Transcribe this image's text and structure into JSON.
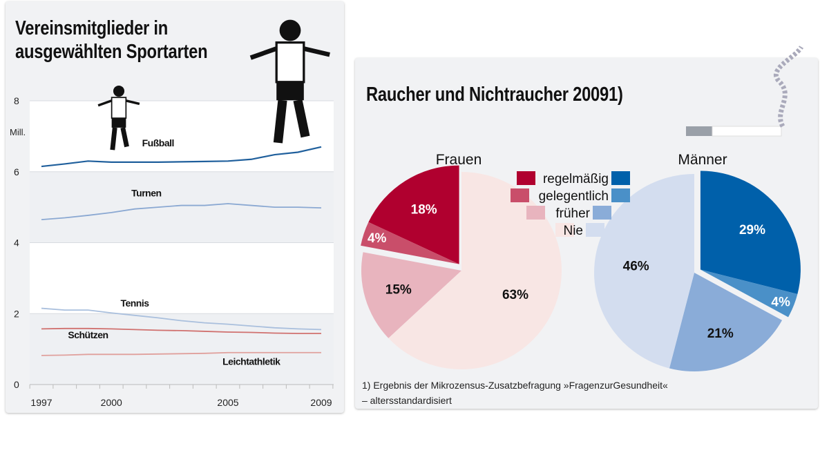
{
  "left": {
    "title_line1": "Vereinsmitglieder in",
    "title_line2": "ausgewählten Sportarten"
  },
  "right": {
    "title": "Raucher und Nichtraucher 20091)",
    "footnote_line1": "1) Ergebnis der Mikrozensus-Zusatzbefragung »FragenzurGesundheit«",
    "footnote_line2": "– altersstandardisiert"
  },
  "chart_data": [
    {
      "type": "line",
      "unit_label": "Mill.",
      "ylim": [
        0,
        8
      ],
      "yticks": [
        0,
        2,
        4,
        6,
        8
      ],
      "xtick_labels": [
        "1997",
        "2000",
        "2005",
        "2009"
      ],
      "x": [
        1997,
        1998,
        1999,
        2000,
        2001,
        2002,
        2003,
        2004,
        2005,
        2006,
        2007,
        2008,
        2009
      ],
      "series": [
        {
          "name": "Fußball",
          "color": "#1f5f9c",
          "values": [
            6.15,
            6.22,
            6.3,
            6.27,
            6.27,
            6.27,
            6.28,
            6.29,
            6.3,
            6.35,
            6.48,
            6.55,
            6.7
          ]
        },
        {
          "name": "Turnen",
          "color": "#8aa8d2",
          "values": [
            4.65,
            4.7,
            4.77,
            4.85,
            4.95,
            5.0,
            5.05,
            5.05,
            5.1,
            5.05,
            5.0,
            5.0,
            4.98
          ]
        },
        {
          "name": "Tennis",
          "color": "#a9bfdd",
          "values": [
            2.15,
            2.1,
            2.1,
            2.02,
            1.95,
            1.88,
            1.8,
            1.74,
            1.7,
            1.65,
            1.6,
            1.57,
            1.55
          ]
        },
        {
          "name": "Schützen",
          "color": "#d0706e",
          "values": [
            1.57,
            1.58,
            1.58,
            1.57,
            1.55,
            1.53,
            1.52,
            1.5,
            1.48,
            1.47,
            1.45,
            1.44,
            1.44
          ]
        },
        {
          "name": "Leichtathletik",
          "color": "#e0a09c",
          "values": [
            0.82,
            0.83,
            0.85,
            0.85,
            0.85,
            0.86,
            0.87,
            0.88,
            0.9,
            0.9,
            0.9,
            0.9,
            0.9
          ]
        }
      ]
    },
    {
      "type": "pie",
      "legend": [
        "regelmäßig",
        "gelegentlich",
        "früher",
        "Nie"
      ],
      "pies": [
        {
          "name": "Frauen",
          "values": [
            18,
            4,
            15,
            63
          ],
          "labels": [
            "18%",
            "4%",
            "15%",
            "63%"
          ],
          "colors": [
            "#b0002f",
            "#c94e6a",
            "#e8b4be",
            "#f8e6e4"
          ]
        },
        {
          "name": "Männer",
          "values": [
            29,
            4,
            21,
            46
          ],
          "labels": [
            "29%",
            "4%",
            "21%",
            "46%"
          ],
          "colors": [
            "#0060aa",
            "#4a90c8",
            "#8aacd8",
            "#d3ddef"
          ]
        }
      ]
    }
  ]
}
